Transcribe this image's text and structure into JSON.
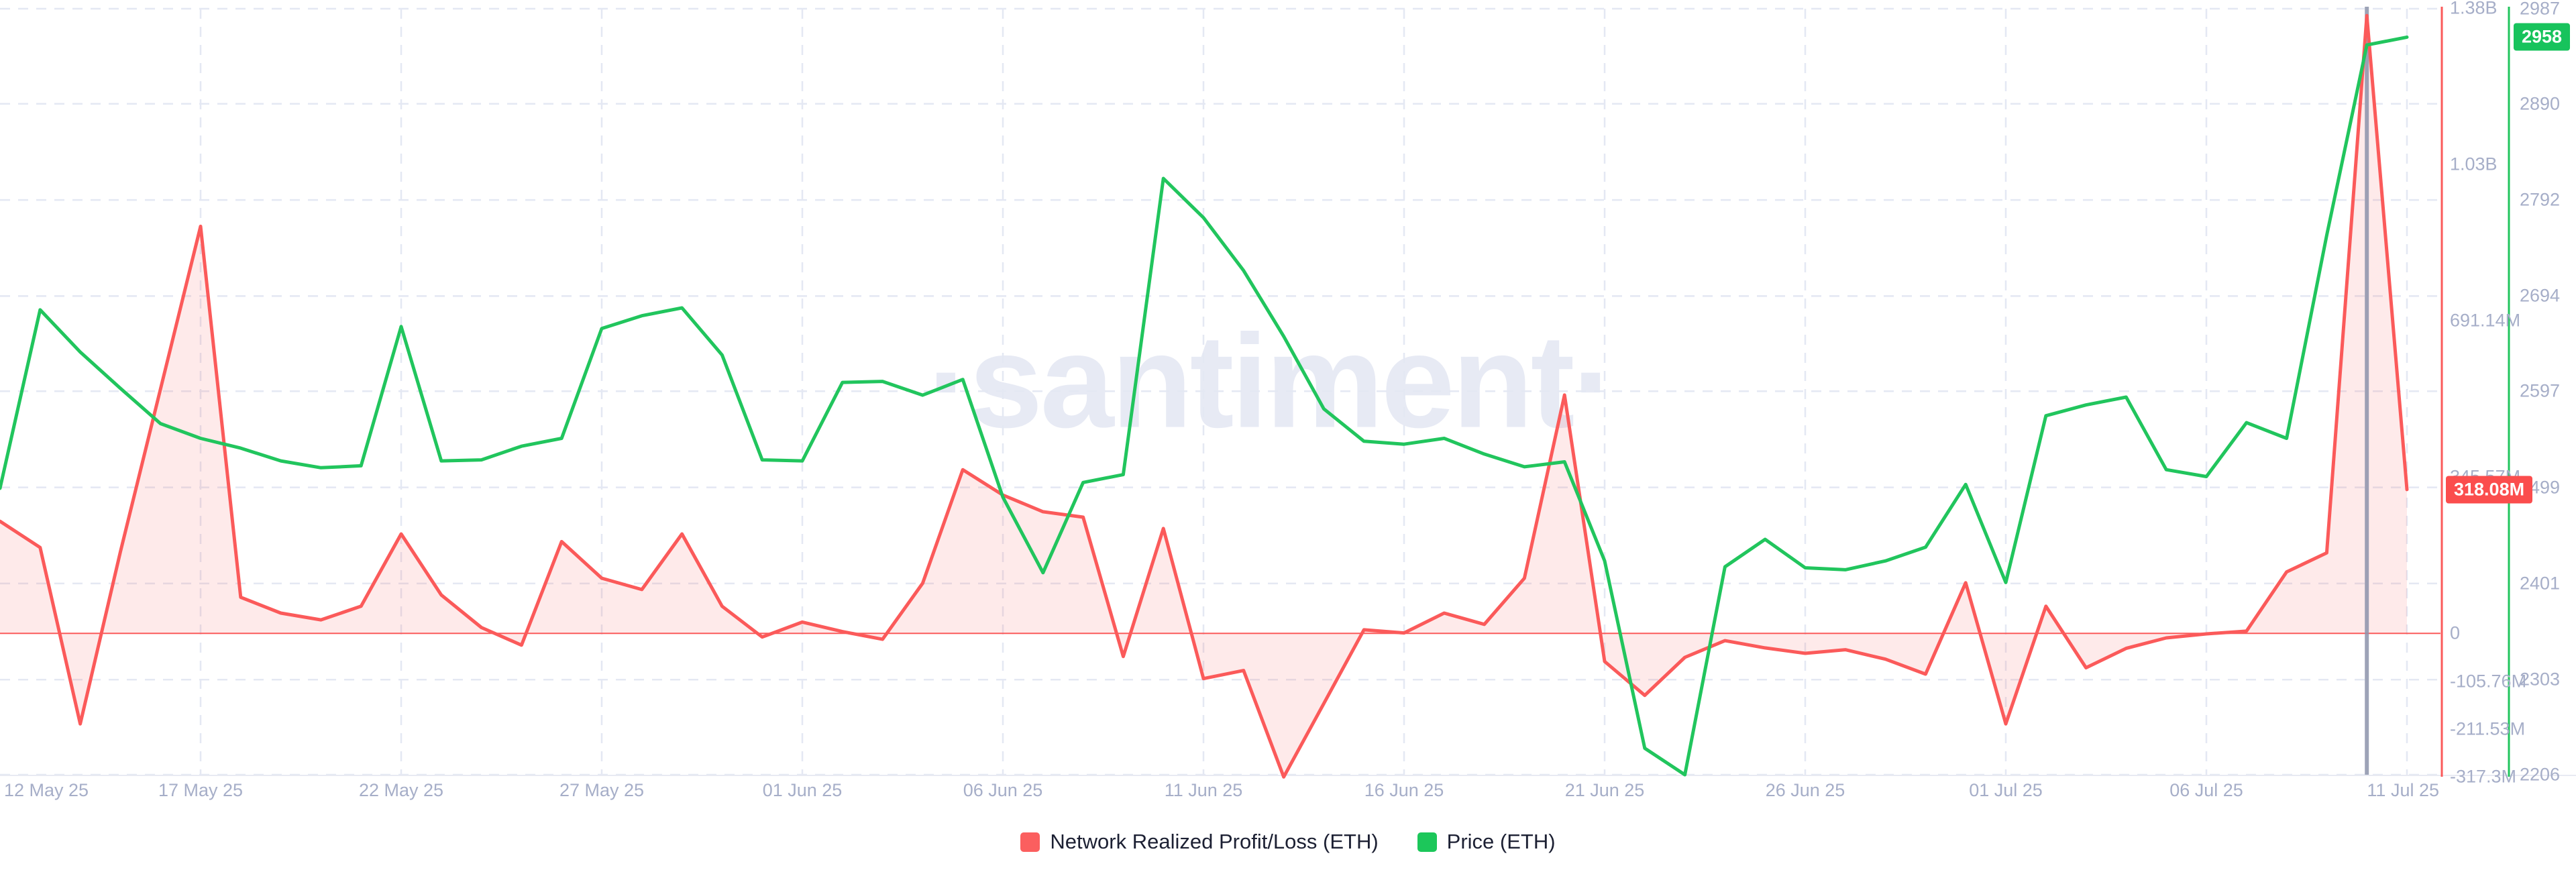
{
  "watermark": "·santiment·",
  "legend": {
    "items": [
      {
        "label": "Network Realized Profit/Loss (ETH)",
        "color": "#fb5f5f"
      },
      {
        "label": "Price (ETH)",
        "color": "#1cc75a"
      }
    ]
  },
  "chart_data": {
    "type": "line",
    "title": "",
    "grid": "dashed",
    "legend_position": "bottom-center",
    "x_axis": {
      "start_date": "12 May 25",
      "end_date": "11 Jul 25",
      "days_total": 61,
      "tick_labels": [
        {
          "label": "12 May 25",
          "day": 0
        },
        {
          "label": "17 May 25",
          "day": 5
        },
        {
          "label": "22 May 25",
          "day": 10
        },
        {
          "label": "27 May 25",
          "day": 15
        },
        {
          "label": "01 Jun 25",
          "day": 20
        },
        {
          "label": "06 Jun 25",
          "day": 25
        },
        {
          "label": "11 Jun 25",
          "day": 30
        },
        {
          "label": "16 Jun 25",
          "day": 35
        },
        {
          "label": "21 Jun 25",
          "day": 40
        },
        {
          "label": "26 Jun 25",
          "day": 45
        },
        {
          "label": "01 Jul 25",
          "day": 50
        },
        {
          "label": "06 Jul 25",
          "day": 55
        },
        {
          "label": "11 Jul 25",
          "day": 60
        }
      ]
    },
    "dates": [
      "12 May 25",
      "13 May 25",
      "14 May 25",
      "15 May 25",
      "16 May 25",
      "17 May 25",
      "18 May 25",
      "19 May 25",
      "20 May 25",
      "21 May 25",
      "22 May 25",
      "23 May 25",
      "24 May 25",
      "25 May 25",
      "26 May 25",
      "27 May 25",
      "28 May 25",
      "29 May 25",
      "30 May 25",
      "31 May 25",
      "01 Jun 25",
      "02 Jun 25",
      "03 Jun 25",
      "04 Jun 25",
      "05 Jun 25",
      "06 Jun 25",
      "07 Jun 25",
      "08 Jun 25",
      "09 Jun 25",
      "10 Jun 25",
      "11 Jun 25",
      "12 Jun 25",
      "13 Jun 25",
      "14 Jun 25",
      "15 Jun 25",
      "16 Jun 25",
      "17 Jun 25",
      "18 Jun 25",
      "19 Jun 25",
      "20 Jun 25",
      "21 Jun 25",
      "22 Jun 25",
      "23 Jun 25",
      "24 Jun 25",
      "25 Jun 25",
      "26 Jun 25",
      "27 Jun 25",
      "28 Jun 25",
      "29 Jun 25",
      "30 Jun 25",
      "01 Jul 25",
      "02 Jul 25",
      "03 Jul 25",
      "04 Jul 25",
      "05 Jul 25",
      "06 Jul 25",
      "07 Jul 25",
      "08 Jul 25",
      "09 Jul 25",
      "10 Jul 25",
      "11 Jul 25"
    ],
    "series": [
      {
        "name": "Network Realized Profit/Loss (ETH)",
        "unit": "USD millions",
        "color": "#fb5a5a",
        "fill": "rgba(251,90,90,0.13)",
        "axis": "right-inner-red",
        "values_millions": [
          248,
          190,
          -200,
          180,
          540,
          900,
          80,
          45,
          30,
          60,
          220,
          85,
          13,
          -26,
          203,
          122,
          97,
          220,
          60,
          -8,
          25,
          4,
          -13,
          111,
          362,
          306,
          269,
          257,
          -51,
          232,
          -100,
          -82,
          -317.3,
          -155,
          8,
          1,
          45,
          20,
          122,
          527,
          -62,
          -137,
          -53,
          -16,
          -32,
          -44,
          -36,
          -57,
          -90,
          112,
          -200,
          60,
          -76,
          -33,
          -10,
          -1,
          5,
          136,
          178,
          1366,
          318.08
        ]
      },
      {
        "name": "Price (ETH)",
        "unit": "USD",
        "color": "#21c55d",
        "fill": "none",
        "axis": "right-outer-green",
        "values": [
          2498,
          2680,
          2637,
          2600,
          2564,
          2549,
          2539,
          2526,
          2519,
          2521,
          2663,
          2526,
          2527,
          2541,
          2549,
          2661,
          2674,
          2682,
          2634,
          2527,
          2526,
          2606,
          2607,
          2593,
          2609,
          2489,
          2412,
          2504,
          2512,
          2814,
          2774,
          2720,
          2653,
          2579,
          2546,
          2543,
          2549,
          2533,
          2520,
          2525,
          2424,
          2233,
          2206,
          2418,
          2446,
          2417,
          2415,
          2424,
          2438,
          2502,
          2402,
          2572,
          2583,
          2591,
          2517,
          2510,
          2565,
          2549,
          2756,
          2950,
          2958
        ]
      }
    ],
    "red_axis": {
      "side": "right-inner",
      "line_color": "#fb5a5a",
      "range_millions": [
        -317.3,
        1382.28
      ],
      "zero_line": true,
      "labels": [
        {
          "text": "1.38B",
          "value_millions": 1382.28
        },
        {
          "text": "1.03B",
          "value_millions": 1036.71
        },
        {
          "text": "691.14M",
          "value_millions": 691.14
        },
        {
          "text": "345.57M",
          "value_millions": 345.57
        },
        {
          "text": "0",
          "value_millions": 0
        },
        {
          "text": "-105.76M",
          "value_millions": -105.76
        },
        {
          "text": "-211.53M",
          "value_millions": -211.53
        },
        {
          "text": "-317.3M",
          "value_millions": -317.3
        }
      ]
    },
    "green_axis": {
      "side": "right-outer",
      "line_color": "#21c55d",
      "range": [
        2206,
        2987
      ],
      "labels": [
        "2987",
        "2890",
        "2792",
        "2694",
        "2597",
        "2499",
        "2401",
        "2303",
        "2206"
      ]
    },
    "badges": [
      {
        "text": "318.08M",
        "value_millions": 318.08,
        "series": "red",
        "bg": "#fb4d4d"
      },
      {
        "text": "2958",
        "value": 2958,
        "series": "green",
        "bg": "#17c35c"
      }
    ],
    "crosshair": {
      "day_index": 59,
      "date": "10 Jul 25",
      "color": "#8d93ab"
    }
  }
}
